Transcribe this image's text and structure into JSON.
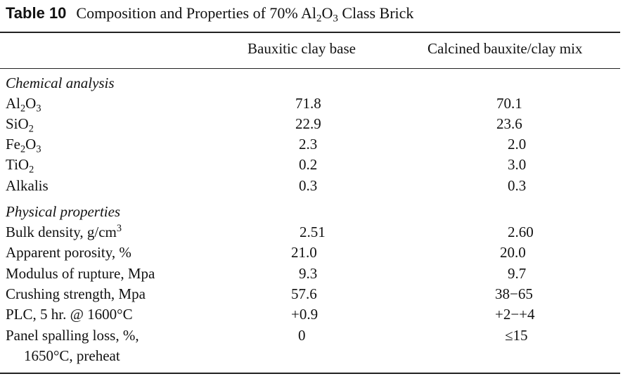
{
  "caption": {
    "label": "Table 10",
    "title_pre": "Composition and Properties of 70% Al",
    "title_sub1": "2",
    "title_mid": "O",
    "title_sub2": "3",
    "title_post": " Class Brick"
  },
  "columns": [
    "Bauxitic clay base",
    "Calcined bauxite/clay mix"
  ],
  "sections": {
    "chemical": "Chemical analysis",
    "physical": "Physical properties"
  },
  "rows": {
    "al2o3": {
      "v1": "71.8",
      "v2": "70.1"
    },
    "sio2": {
      "v1": "22.9",
      "v2": "23.6"
    },
    "fe2o3": {
      "v1": "2.3",
      "v2": "2.0"
    },
    "tio2": {
      "v1": "0.2",
      "v2": "3.0"
    },
    "alkalis": {
      "label": "Alkalis",
      "v1": "0.3",
      "v2": "0.3"
    },
    "bulk_density": {
      "label": "Bulk density, g/cm",
      "label_sup": "3",
      "v1": "2.51",
      "v2": "2.60"
    },
    "porosity": {
      "label": "Apparent porosity, %",
      "v1": "21.0",
      "v2": "20.0"
    },
    "rupture": {
      "label": "Modulus of rupture, Mpa",
      "v1": "9.3",
      "v2": "9.7"
    },
    "crushing": {
      "label": "Crushing strength, Mpa",
      "v1": "57.6",
      "v2": "38−65"
    },
    "plc": {
      "label": "PLC, 5 hr. @ 1600°C",
      "v1": "+0.9",
      "v2": "+2−+4"
    },
    "spalling": {
      "label": "Panel spalling loss, %,",
      "label2": "1650°C, preheat",
      "v1": "0",
      "v2": "≤15"
    }
  },
  "formulas": {
    "al": "Al",
    "al_s1": "2",
    "al_o": "O",
    "al_s2": "3",
    "si": "SiO",
    "si_s": "2",
    "fe": "Fe",
    "fe_s1": "2",
    "fe_o": "O",
    "fe_s2": "3",
    "ti": "TiO",
    "ti_s": "2"
  }
}
